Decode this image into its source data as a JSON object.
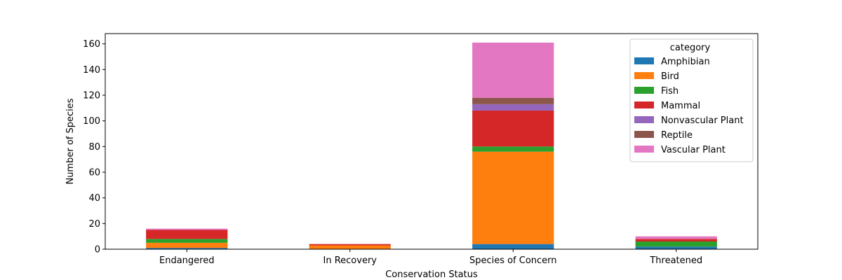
{
  "chart_data": {
    "type": "bar",
    "stacked": true,
    "title": "",
    "xlabel": "Conservation Status",
    "ylabel": "Number of Species",
    "categories": [
      "Endangered",
      "In Recovery",
      "Species of Concern",
      "Threatened"
    ],
    "ylim": [
      0,
      168
    ],
    "yticks": [
      0,
      20,
      40,
      60,
      80,
      100,
      120,
      140,
      160
    ],
    "legend": {
      "title": "category",
      "placement": "top-right"
    },
    "series": [
      {
        "name": "Amphibian",
        "color": "#1f77b4",
        "values": [
          1,
          0,
          4,
          2
        ]
      },
      {
        "name": "Bird",
        "color": "#ff7f0e",
        "values": [
          4,
          3,
          72,
          0
        ]
      },
      {
        "name": "Fish",
        "color": "#2ca02c",
        "values": [
          3,
          0,
          4,
          4
        ]
      },
      {
        "name": "Mammal",
        "color": "#d62728",
        "values": [
          7,
          1,
          28,
          2
        ]
      },
      {
        "name": "Nonvascular Plant",
        "color": "#9467bd",
        "values": [
          0,
          0,
          5,
          0
        ]
      },
      {
        "name": "Reptile",
        "color": "#8c564b",
        "values": [
          0,
          0,
          5,
          0
        ]
      },
      {
        "name": "Vascular Plant",
        "color": "#e377c2",
        "values": [
          1,
          0,
          43,
          2
        ]
      }
    ]
  }
}
